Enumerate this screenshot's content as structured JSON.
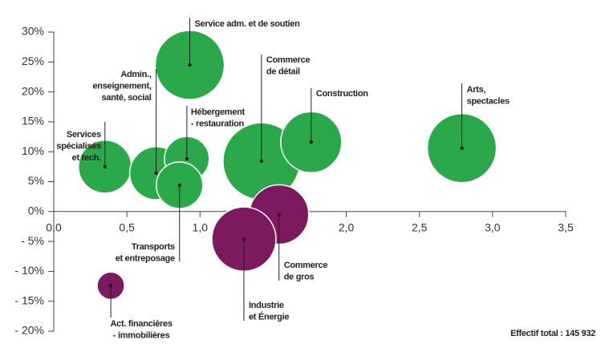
{
  "chart_data": {
    "type": "scatter",
    "x": [
      0.93,
      0.35,
      0.7,
      0.91,
      0.86,
      1.42,
      1.76,
      2.79,
      1.54,
      1.3,
      0.39
    ],
    "values": [
      24.5,
      7.5,
      6.4,
      8.8,
      4.4,
      8.4,
      11.6,
      10.6,
      -0.5,
      -4.6,
      -12.4
    ],
    "sizes": [
      1850,
      1090,
      1090,
      780,
      840,
      2300,
      1440,
      1850,
      1370,
      1600,
      290
    ],
    "colors": [
      "#2aa84a",
      "#2aa84a",
      "#2aa84a",
      "#2aa84a",
      "#2aa84a",
      "#2aa84a",
      "#2aa84a",
      "#2aa84a",
      "#7b1a5f",
      "#7b1a5f",
      "#7b1a5f"
    ],
    "labels": [
      [
        "Service adm. et de soutien"
      ],
      [
        "Services",
        "spécialisés",
        "et tech."
      ],
      [
        "Admin.,",
        "enseignement,",
        "santé, social"
      ],
      [
        "Hébergement",
        "- restauration"
      ],
      [
        "Transports",
        "et entreposage"
      ],
      [
        "Commerce",
        "de détail"
      ],
      [
        "Construction"
      ],
      [
        "Arts,",
        "spectacles"
      ],
      [
        "Commerce",
        "de gros"
      ],
      [
        "Industrie",
        "et Énergie"
      ],
      [
        "Act. financières",
        "- immobilières"
      ]
    ],
    "xlim": [
      0,
      3.5
    ],
    "xticks": [
      {
        "value": 0,
        "label": "0,0"
      },
      {
        "value": 0.5,
        "label": "0,5"
      },
      {
        "value": 1,
        "label": "1,0"
      },
      {
        "value": 1.5,
        "label": "1,5"
      },
      {
        "value": 2,
        "label": "2,0"
      },
      {
        "value": 2.5,
        "label": "2,5"
      },
      {
        "value": 3,
        "label": "3,0"
      },
      {
        "value": 3.5,
        "label": "3,5"
      }
    ],
    "ylim": [
      -20,
      30
    ],
    "yticks": [
      {
        "value": 30,
        "label": "30%"
      },
      {
        "value": 25,
        "label": "25%"
      },
      {
        "value": 20,
        "label": "20%"
      },
      {
        "value": 15,
        "label": "15%"
      },
      {
        "value": 10,
        "label": "10%"
      },
      {
        "value": 5,
        "label": "5%"
      },
      {
        "value": 0,
        "label": "0%"
      },
      {
        "value": -5,
        "label": "- 5%"
      },
      {
        "value": -10,
        "label": "- 10%"
      },
      {
        "value": -15,
        "label": "- 15%"
      },
      {
        "value": -20,
        "label": "- 20%"
      }
    ],
    "note": "Effectif total : 145 932"
  }
}
